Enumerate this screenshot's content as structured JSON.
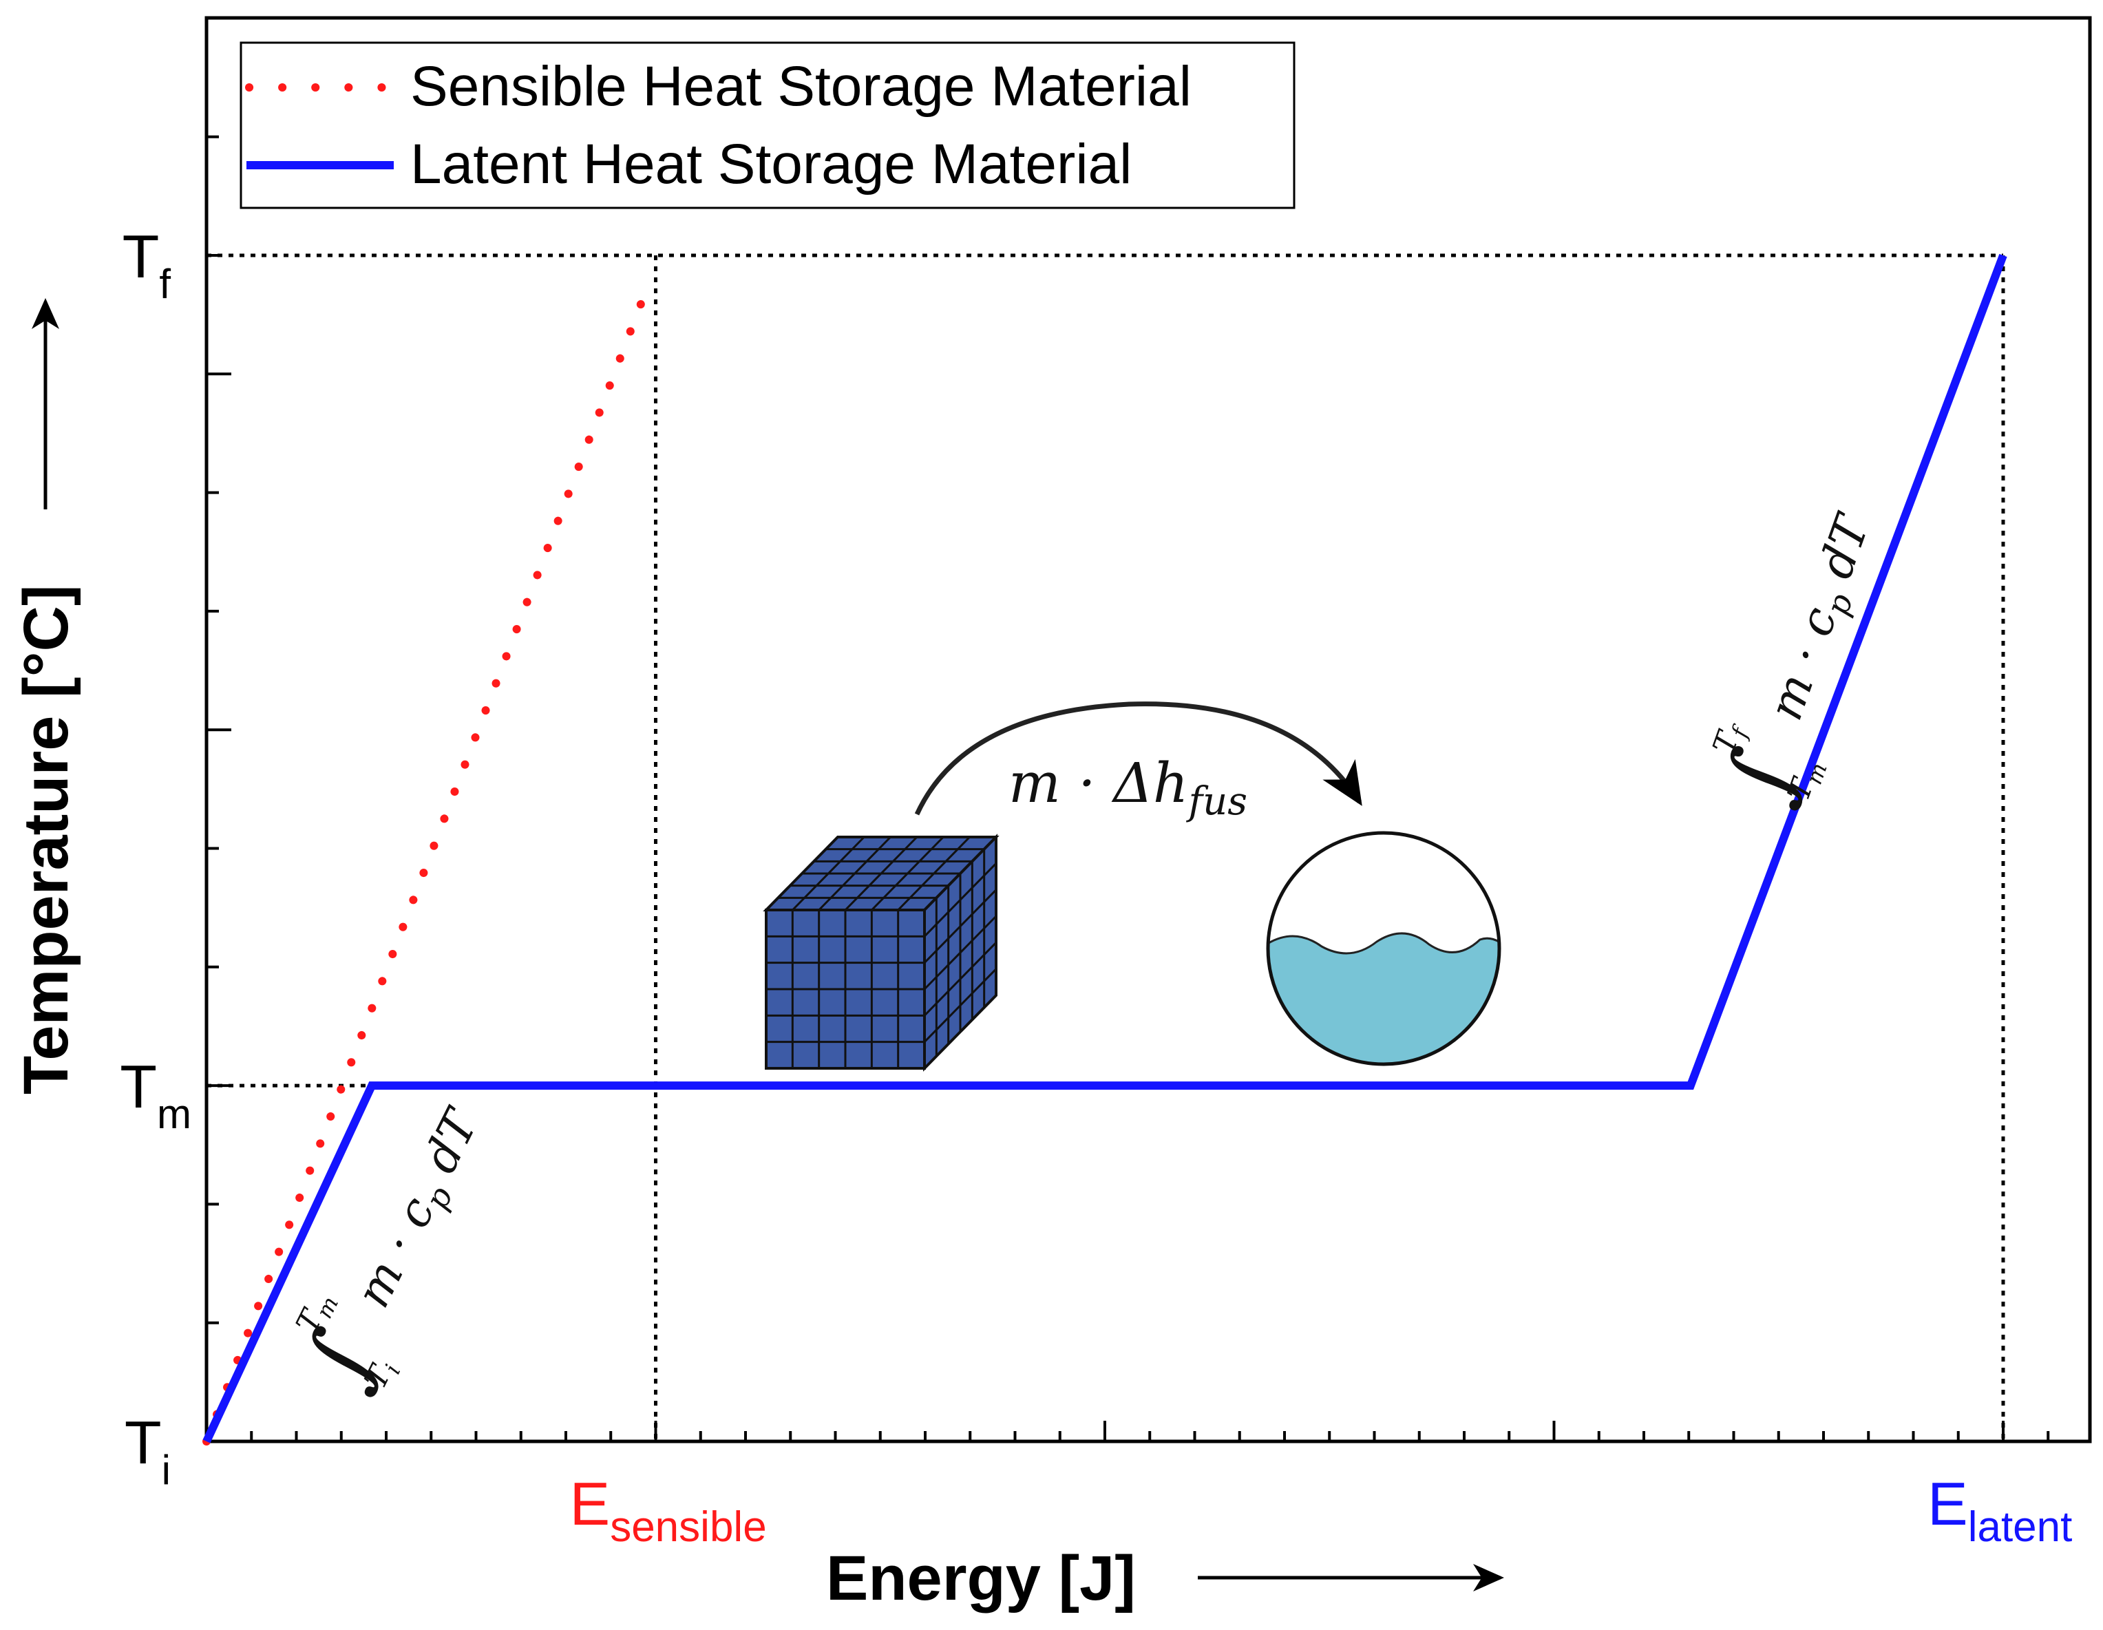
{
  "chart_data": {
    "type": "line",
    "xlabel": "Energy [J]",
    "ylabel": "Temperature [°C]",
    "xlim": [
      0,
      100
    ],
    "ylim": [
      0,
      12
    ],
    "y_markers": [
      {
        "main": "T",
        "sub": "i",
        "value": 0
      },
      {
        "main": "T",
        "sub": "m",
        "value": 3
      },
      {
        "main": "T",
        "sub": "f",
        "value": 10
      }
    ],
    "x_markers": [
      {
        "main": "E",
        "sub": "sensible",
        "value": 25,
        "color": "#ff1a1a"
      },
      {
        "main": "E",
        "sub": "latent",
        "value": 100,
        "color": "#1414ff"
      }
    ],
    "series": [
      {
        "name": "Sensible Heat Storage Material",
        "color": "#ff1a1a",
        "style": "dotted",
        "x": [
          0,
          24.2
        ],
        "y": [
          0,
          9.6
        ]
      },
      {
        "name": "Latent Heat Storage Material",
        "color": "#1414ff",
        "style": "solid",
        "x": [
          0,
          9.2,
          82.6,
          100
        ],
        "y": [
          0,
          3,
          3,
          10
        ]
      }
    ],
    "annotations": [
      {
        "id": "eq-sensible",
        "int_upper": "T",
        "int_upper_sub": "m",
        "int_lower": "T",
        "int_lower_sub": "i",
        "body": "m · c",
        "body_sub": "p",
        "tail": " dT"
      },
      {
        "id": "eq-latent",
        "int_upper": "T",
        "int_upper_sub": "f",
        "int_lower": "T",
        "int_lower_sub": "m",
        "body": "m · c",
        "body_sub": "p",
        "tail": " dT"
      },
      {
        "id": "eq-fusion",
        "main": "m · Δh",
        "sub": "fus"
      }
    ],
    "colors": {
      "solid_block": "#3d5ba6",
      "liquid": "#78c4d6"
    },
    "legend": "top-left",
    "grid": false
  }
}
